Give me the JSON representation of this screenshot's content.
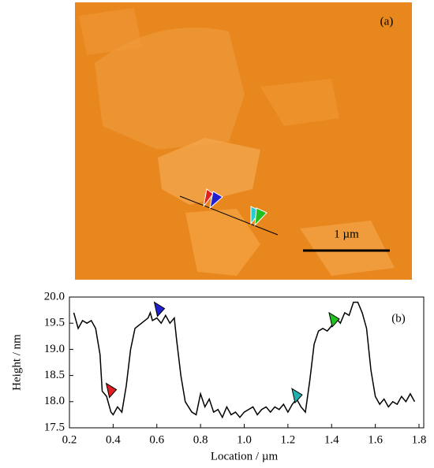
{
  "image": {
    "label": "(a)",
    "scale_bar": "1 µm"
  },
  "chart_data": {
    "type": "line",
    "label": "(b)",
    "x_label": "Location / µm",
    "y_label": "Height / nm",
    "x": [
      0.22,
      0.24,
      0.26,
      0.28,
      0.3,
      0.32,
      0.34,
      0.35,
      0.37,
      0.39,
      0.4,
      0.42,
      0.44,
      0.46,
      0.48,
      0.5,
      0.53,
      0.56,
      0.57,
      0.58,
      0.6,
      0.62,
      0.64,
      0.66,
      0.68,
      0.69,
      0.71,
      0.73,
      0.76,
      0.78,
      0.8,
      0.82,
      0.84,
      0.86,
      0.88,
      0.9,
      0.92,
      0.94,
      0.96,
      0.98,
      1.0,
      1.02,
      1.04,
      1.06,
      1.08,
      1.1,
      1.12,
      1.14,
      1.16,
      1.18,
      1.2,
      1.22,
      1.24,
      1.26,
      1.28,
      1.3,
      1.32,
      1.34,
      1.36,
      1.38,
      1.4,
      1.42,
      1.44,
      1.46,
      1.48,
      1.5,
      1.52,
      1.54,
      1.56,
      1.58,
      1.6,
      1.62,
      1.64,
      1.66,
      1.68,
      1.7,
      1.72,
      1.74,
      1.76,
      1.78
    ],
    "series": [
      {
        "color": "#000000",
        "values": [
          19.7,
          19.4,
          19.55,
          19.5,
          19.55,
          19.4,
          18.9,
          18.2,
          18.1,
          17.8,
          17.75,
          17.9,
          17.8,
          18.3,
          19.0,
          19.4,
          19.5,
          19.6,
          19.7,
          19.55,
          19.6,
          19.5,
          19.65,
          19.5,
          19.6,
          19.2,
          18.5,
          18.0,
          17.8,
          17.75,
          18.15,
          17.9,
          18.05,
          17.8,
          17.85,
          17.7,
          17.9,
          17.75,
          17.8,
          17.7,
          17.8,
          17.85,
          17.9,
          17.75,
          17.85,
          17.9,
          17.8,
          17.9,
          17.85,
          17.95,
          17.8,
          17.95,
          18.05,
          17.9,
          17.8,
          18.4,
          19.1,
          19.35,
          19.4,
          19.35,
          19.45,
          19.6,
          19.5,
          19.7,
          19.65,
          19.9,
          19.9,
          19.7,
          19.4,
          18.6,
          18.1,
          17.95,
          18.05,
          17.9,
          18.0,
          17.95,
          18.1,
          18.0,
          18.15,
          18.0
        ]
      }
    ],
    "markers": [
      {
        "color": "#e02020",
        "x": 0.39,
        "y": 18.2
      },
      {
        "color": "#2020d0",
        "x": 0.61,
        "y": 19.75
      },
      {
        "color": "#20b0b0",
        "x": 1.24,
        "y": 18.1
      },
      {
        "color": "#20c020",
        "x": 1.41,
        "y": 19.55
      }
    ],
    "xlim": [
      0.2,
      1.8
    ],
    "ylim": [
      17.5,
      20.0
    ],
    "xticks": [
      0.2,
      0.4,
      0.6,
      0.8,
      {
        "value": 1,
        "label": "1.0"
      },
      1.2,
      1.4,
      1.6,
      1.8
    ],
    "yticks": [
      17.5,
      {
        "value": 18,
        "label": "18.0"
      },
      18.5,
      {
        "value": 19,
        "label": "19.0"
      },
      19.5,
      {
        "value": 20,
        "label": "20.0"
      }
    ]
  }
}
